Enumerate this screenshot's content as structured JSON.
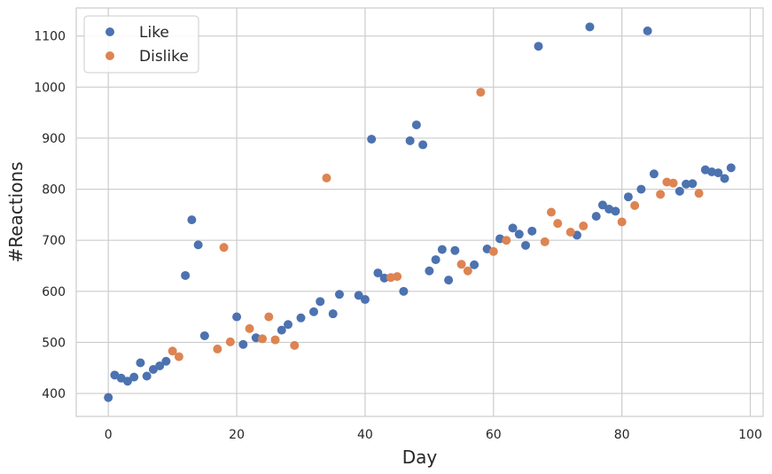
{
  "chart_data": {
    "type": "scatter",
    "title": "",
    "xlabel": "Day",
    "ylabel": "#Reactions",
    "xlim": [
      -5,
      102
    ],
    "ylim": [
      355,
      1155
    ],
    "xticks": [
      0,
      20,
      40,
      60,
      80,
      100
    ],
    "yticks": [
      400,
      500,
      600,
      700,
      800,
      900,
      1000,
      1100
    ],
    "grid": true,
    "legend_position": "top-left",
    "series": [
      {
        "name": "Like",
        "color": "#4c72b0",
        "points": [
          [
            0,
            392
          ],
          [
            1,
            436
          ],
          [
            2,
            430
          ],
          [
            3,
            424
          ],
          [
            4,
            432
          ],
          [
            5,
            460
          ],
          [
            6,
            434
          ],
          [
            7,
            447
          ],
          [
            8,
            454
          ],
          [
            9,
            463
          ],
          [
            12,
            631
          ],
          [
            13,
            740
          ],
          [
            14,
            691
          ],
          [
            15,
            513
          ],
          [
            20,
            550
          ],
          [
            21,
            496
          ],
          [
            23,
            509
          ],
          [
            27,
            524
          ],
          [
            28,
            535
          ],
          [
            30,
            548
          ],
          [
            32,
            560
          ],
          [
            33,
            580
          ],
          [
            35,
            556
          ],
          [
            36,
            594
          ],
          [
            39,
            592
          ],
          [
            40,
            584
          ],
          [
            41,
            898
          ],
          [
            42,
            636
          ],
          [
            43,
            626
          ],
          [
            46,
            600
          ],
          [
            47,
            895
          ],
          [
            48,
            926
          ],
          [
            49,
            887
          ],
          [
            50,
            640
          ],
          [
            51,
            662
          ],
          [
            52,
            682
          ],
          [
            53,
            622
          ],
          [
            54,
            680
          ],
          [
            57,
            652
          ],
          [
            59,
            683
          ],
          [
            61,
            703
          ],
          [
            63,
            724
          ],
          [
            64,
            712
          ],
          [
            65,
            690
          ],
          [
            66,
            718
          ],
          [
            67,
            1080
          ],
          [
            73,
            710
          ],
          [
            75,
            1118
          ],
          [
            76,
            747
          ],
          [
            77,
            769
          ],
          [
            78,
            761
          ],
          [
            79,
            757
          ],
          [
            81,
            785
          ],
          [
            83,
            800
          ],
          [
            84,
            1110
          ],
          [
            85,
            830
          ],
          [
            89,
            796
          ],
          [
            90,
            810
          ],
          [
            91,
            811
          ],
          [
            93,
            838
          ],
          [
            94,
            834
          ],
          [
            95,
            832
          ],
          [
            96,
            821
          ],
          [
            97,
            842
          ]
        ]
      },
      {
        "name": "Dislike",
        "color": "#dd8452",
        "points": [
          [
            10,
            483
          ],
          [
            11,
            472
          ],
          [
            17,
            487
          ],
          [
            18,
            686
          ],
          [
            19,
            501
          ],
          [
            22,
            527
          ],
          [
            24,
            507
          ],
          [
            25,
            550
          ],
          [
            26,
            505
          ],
          [
            29,
            494
          ],
          [
            34,
            822
          ],
          [
            44,
            627
          ],
          [
            45,
            629
          ],
          [
            55,
            653
          ],
          [
            56,
            640
          ],
          [
            58,
            990
          ],
          [
            60,
            678
          ],
          [
            62,
            700
          ],
          [
            68,
            697
          ],
          [
            69,
            755
          ],
          [
            70,
            733
          ],
          [
            72,
            716
          ],
          [
            74,
            728
          ],
          [
            80,
            736
          ],
          [
            82,
            768
          ],
          [
            86,
            790
          ],
          [
            87,
            814
          ],
          [
            88,
            812
          ],
          [
            92,
            792
          ]
        ]
      }
    ]
  }
}
